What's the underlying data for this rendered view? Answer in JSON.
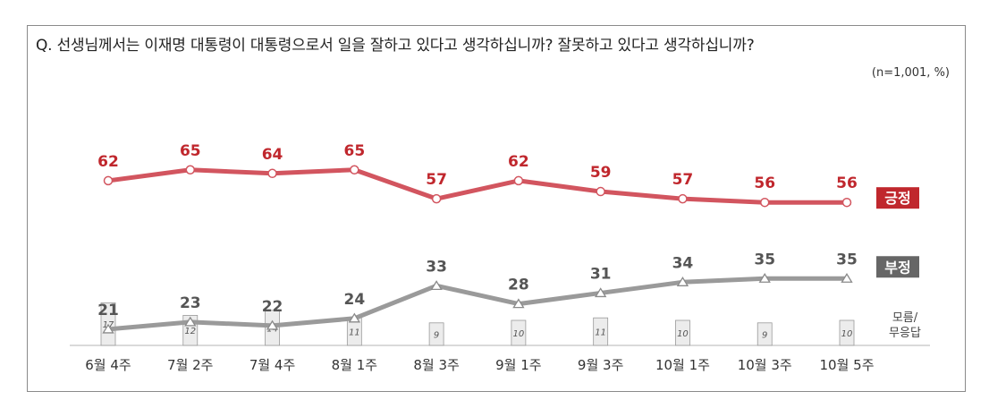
{
  "question": "Q. 선생님께서는 이재명 대통령이 대통령으로서 일을 잘하고 있다고 생각하십니까? 잘못하고 있다고 생각하십니까?",
  "note": "(n=1,001, %)",
  "chart_data": {
    "type": "line",
    "categories": [
      "6월 4주",
      "7월 2주",
      "7월 4주",
      "8월 1주",
      "8월 3주",
      "9월 1주",
      "9월 3주",
      "10월 1주",
      "10월 3주",
      "10월 5주"
    ],
    "series": [
      {
        "name": "긍정",
        "values": [
          62,
          65,
          64,
          65,
          57,
          62,
          59,
          57,
          56,
          56
        ],
        "color": "#d2555f",
        "marker": "circle"
      },
      {
        "name": "부정",
        "values": [
          21,
          23,
          22,
          24,
          33,
          28,
          31,
          34,
          35,
          35
        ],
        "color": "#9a9a9a",
        "marker": "triangle"
      }
    ],
    "bars": {
      "name": "모름/\n무응답",
      "values": [
        17,
        12,
        14,
        11,
        9,
        10,
        11,
        10,
        9,
        10
      ],
      "color": "#ececec"
    },
    "legend_bg": {
      "긍정": "#c0272d",
      "부정": "#666666"
    },
    "legend_placement": "right"
  }
}
